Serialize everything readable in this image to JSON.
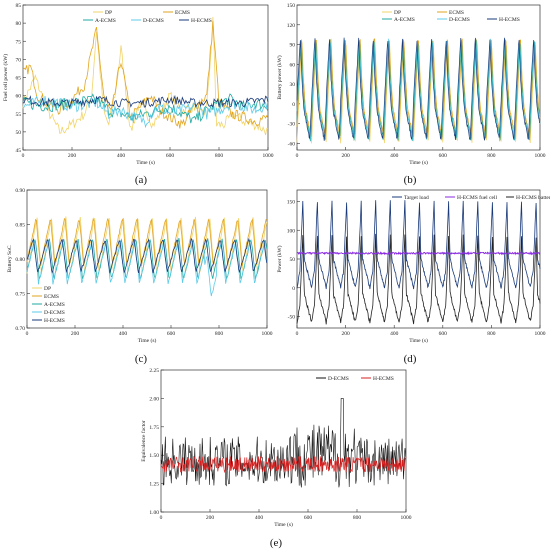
{
  "figure": {
    "captions": [
      "(a)",
      "(b)",
      "(c)",
      "(d)",
      "(e)"
    ]
  },
  "chart_data": [
    {
      "id": "a",
      "type": "line",
      "xlabel": "Time (s)",
      "ylabel": "Fuel cell power (kW)",
      "xlim": [
        0,
        1000
      ],
      "ylim": [
        45,
        85
      ],
      "xticks": [
        0,
        200,
        400,
        600,
        800,
        1000
      ],
      "yticks": [
        45,
        50,
        55,
        60,
        65,
        70,
        75,
        80,
        85
      ],
      "legend_position": "top",
      "series": [
        {
          "name": "DP",
          "color": "#f2d46a",
          "x": [
            0,
            50,
            100,
            150,
            200,
            250,
            280,
            300,
            330,
            350,
            380,
            400,
            440,
            470,
            500,
            530,
            560,
            600,
            650,
            700,
            740,
            760,
            775,
            790,
            820,
            860,
            900,
            950,
            1000
          ],
          "values": [
            58,
            65,
            56,
            50,
            52,
            55,
            60,
            78,
            55,
            52,
            62,
            73,
            50,
            57,
            56,
            52,
            55,
            60,
            56,
            57,
            54,
            64,
            82,
            52,
            52,
            55,
            53,
            52,
            50
          ]
        },
        {
          "name": "ECMS",
          "color": "#e2a520",
          "x": [
            0,
            30,
            60,
            100,
            150,
            200,
            250,
            300,
            330,
            360,
            400,
            440,
            480,
            520,
            560,
            600,
            650,
            700,
            750,
            775,
            800,
            850,
            900,
            950,
            1000
          ],
          "values": [
            66,
            68,
            60,
            58,
            56,
            59,
            63,
            78,
            60,
            55,
            70,
            54,
            57,
            60,
            56,
            54,
            52,
            57,
            60,
            80,
            58,
            55,
            54,
            53,
            54
          ]
        },
        {
          "name": "A-ECMS",
          "color": "#1faaa0",
          "x": [
            0,
            100,
            200,
            300,
            350,
            400,
            450,
            500,
            550,
            600,
            650,
            700,
            750,
            800,
            850,
            900,
            950,
            1000
          ],
          "values": [
            58,
            57,
            58,
            59,
            56,
            55,
            54,
            55,
            56,
            57,
            55,
            53,
            56,
            58,
            59,
            57,
            58,
            57
          ]
        },
        {
          "name": "D-ECMS",
          "color": "#5ccbe8",
          "x": [
            0,
            100,
            200,
            300,
            350,
            400,
            450,
            500,
            550,
            600,
            650,
            700,
            750,
            800,
            850,
            900,
            950,
            1000
          ],
          "values": [
            57,
            59,
            57,
            58,
            55,
            56,
            54,
            53,
            57,
            55,
            56,
            57,
            55,
            56,
            58,
            57,
            56,
            58
          ]
        },
        {
          "name": "H-ECMS",
          "color": "#1a3a7a",
          "x": [
            0,
            100,
            200,
            300,
            400,
            500,
            600,
            700,
            800,
            900,
            1000
          ],
          "values": [
            59,
            58,
            58,
            59,
            58,
            58,
            59,
            58,
            58,
            58,
            59
          ]
        }
      ]
    },
    {
      "id": "b",
      "type": "line",
      "xlabel": "Time (s)",
      "ylabel": "Battery power (kW)",
      "xlim": [
        0,
        1000
      ],
      "ylim": [
        -70,
        150
      ],
      "xticks": [
        0,
        200,
        400,
        600,
        800,
        1000
      ],
      "yticks": [
        -60,
        -30,
        0,
        30,
        60,
        90,
        120,
        150
      ],
      "legend_position": "top",
      "period_s": 60,
      "peak": 100,
      "trough": -55,
      "series": [
        {
          "name": "DP",
          "color": "#f2d46a"
        },
        {
          "name": "ECMS",
          "color": "#e2a520"
        },
        {
          "name": "A-ECMS",
          "color": "#1faaa0"
        },
        {
          "name": "D-ECMS",
          "color": "#5ccbe8"
        },
        {
          "name": "H-ECMS",
          "color": "#1a3a7a"
        }
      ]
    },
    {
      "id": "c",
      "type": "line",
      "xlabel": "Time (s)",
      "ylabel": "Battery SoC",
      "xlim": [
        0,
        1000
      ],
      "ylim": [
        0.7,
        0.9
      ],
      "xticks": [
        0,
        200,
        400,
        600,
        800,
        1000
      ],
      "yticks": [
        0.7,
        0.75,
        0.8,
        0.85,
        0.9
      ],
      "legend_position": "bottom-left",
      "period_s": 60,
      "series": [
        {
          "name": "DP",
          "color": "#f2d46a",
          "center": 0.82,
          "amp": 0.04
        },
        {
          "name": "ECMS",
          "color": "#e2a520",
          "center": 0.825,
          "amp": 0.035
        },
        {
          "name": "A-ECMS",
          "color": "#1faaa0",
          "center": 0.8,
          "amp": 0.03
        },
        {
          "name": "D-ECMS",
          "color": "#5ccbe8",
          "center": 0.795,
          "amp": 0.03
        },
        {
          "name": "H-ECMS",
          "color": "#1a3a7a",
          "center": 0.805,
          "amp": 0.025
        }
      ]
    },
    {
      "id": "d",
      "type": "line",
      "xlabel": "Time (s)",
      "ylabel": "Power (kW)",
      "xlim": [
        0,
        1000
      ],
      "ylim": [
        -70,
        170
      ],
      "xticks": [
        0,
        200,
        400,
        600,
        800,
        1000
      ],
      "yticks": [
        -50,
        0,
        50,
        100,
        150
      ],
      "legend_position": "top",
      "period_s": 60,
      "series": [
        {
          "name": "Target load",
          "color": "#1a3a7a",
          "peak": 150,
          "trough": 0
        },
        {
          "name": "H-ECMS fuel cell",
          "color": "#8a2be2",
          "level": 60
        },
        {
          "name": "H-ECMS battery",
          "color": "#222222",
          "peak": 90,
          "trough": -55
        }
      ]
    },
    {
      "id": "e",
      "type": "line",
      "xlabel": "Time (s)",
      "ylabel": "Equivalence factor",
      "xlim": [
        0,
        1000
      ],
      "ylim": [
        1.0,
        2.25
      ],
      "xticks": [
        0,
        200,
        400,
        600,
        800,
        1000
      ],
      "yticks": [
        1.0,
        1.25,
        1.5,
        1.75,
        2.0,
        2.25
      ],
      "legend_position": "top-right",
      "series": [
        {
          "name": "D-ECMS",
          "color": "#111111",
          "center": 1.45,
          "spread": 0.22
        },
        {
          "name": "H-ECMS",
          "color": "#d42020",
          "center": 1.42,
          "spread": 0.07
        }
      ]
    }
  ]
}
